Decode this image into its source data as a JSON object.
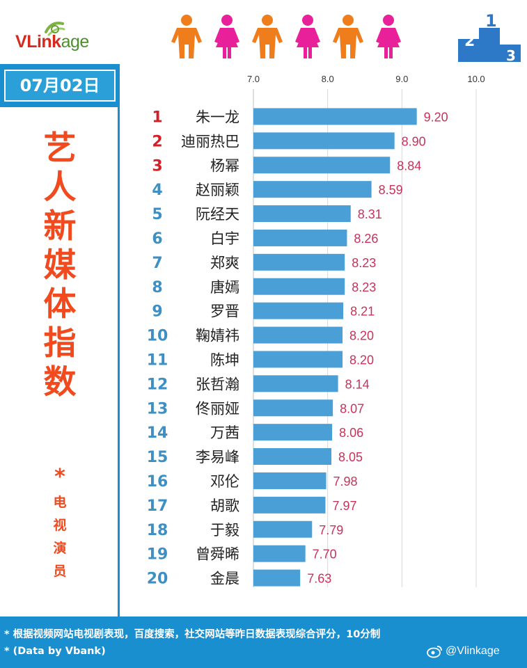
{
  "brand": {
    "logo_v": "V",
    "logo_rest": "Link",
    "logo_tail": "age"
  },
  "date": "07月02日",
  "title_chars": [
    "艺",
    "人",
    "新",
    "媒",
    "体",
    "指",
    "数"
  ],
  "subtitle_star": "*",
  "subtitle_chars": [
    "电",
    "视",
    "演",
    "员"
  ],
  "podium_numbers": [
    "2",
    "1",
    "3"
  ],
  "footer": {
    "note1": "* 根据视频网站电视剧表现，百度搜索，社交网站等昨日数据表现综合评分，10分制",
    "note2": "* (Data by Vbank)",
    "weibo_handle": "@Vlinkage"
  },
  "colors": {
    "bar": "#4a9fd6",
    "value": "#c8325a",
    "rank_top3": "#d31f27",
    "rank_other": "#3d8fc4",
    "accent_blue": "#1a8fd0",
    "title_orange": "#f04a1e",
    "male_figure": "#f07d1c",
    "female_figure": "#e8219a"
  },
  "chart_data": {
    "type": "bar",
    "orientation": "horizontal",
    "xlim": [
      7.0,
      10.0
    ],
    "xticks": [
      "7.0",
      "8.0",
      "9.0",
      "10.0"
    ],
    "grid": "vertical",
    "ranks": [
      "1",
      "2",
      "3",
      "4",
      "5",
      "6",
      "7",
      "8",
      "9",
      "10",
      "11",
      "12",
      "13",
      "14",
      "15",
      "16",
      "17",
      "18",
      "19",
      "20"
    ],
    "categories": [
      "朱一龙",
      "迪丽热巴",
      "杨幂",
      "赵丽颖",
      "阮经天",
      "白宇",
      "郑爽",
      "唐嫣",
      "罗晋",
      "鞠婧祎",
      "陈坤",
      "张哲瀚",
      "佟丽娅",
      "万茜",
      "李易峰",
      "邓伦",
      "胡歌",
      "于毅",
      "曾舜晞",
      "金晨"
    ],
    "values": [
      9.2,
      8.9,
      8.84,
      8.59,
      8.31,
      8.26,
      8.23,
      8.23,
      8.21,
      8.2,
      8.2,
      8.14,
      8.07,
      8.06,
      8.05,
      7.98,
      7.97,
      7.79,
      7.7,
      7.63
    ],
    "value_labels": [
      "9.20",
      "8.90",
      "8.84",
      "8.59",
      "8.31",
      "8.26",
      "8.23",
      "8.23",
      "8.21",
      "8.20",
      "8.20",
      "8.14",
      "8.07",
      "8.06",
      "8.05",
      "7.98",
      "7.97",
      "7.79",
      "7.70",
      "7.63"
    ]
  }
}
